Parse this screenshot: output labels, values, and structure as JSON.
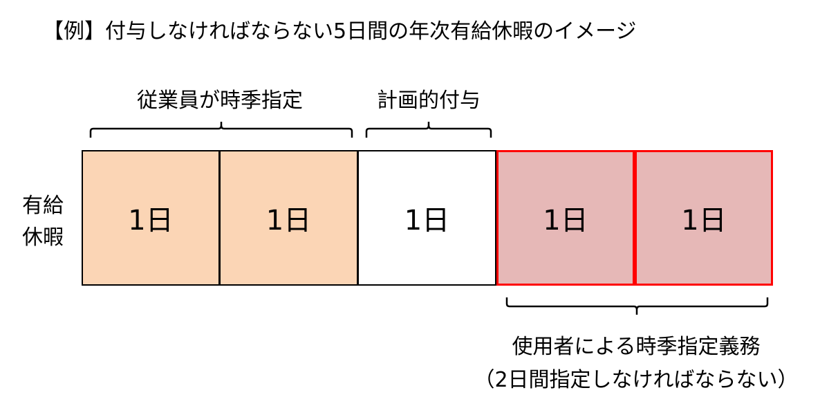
{
  "title": "【例】付与しなければならない5日間の年次有給休暇のイメージ",
  "groups": {
    "employee": "従業員が時季指定",
    "planned": "計画的付与",
    "employer_line1": "使用者による時季指定義務",
    "employer_line2": "（2日間指定しなければならない）"
  },
  "row_label": {
    "line1": "有給",
    "line2": "休暇"
  },
  "days": [
    {
      "label": "1日",
      "fill": "#fbd5b5",
      "border": "#000000"
    },
    {
      "label": "1日",
      "fill": "#fbd5b5",
      "border": "#000000"
    },
    {
      "label": "1日",
      "fill": "#ffffff",
      "border": "#000000"
    },
    {
      "label": "1日",
      "fill": "#e6b8b7",
      "border": "#ff0000"
    },
    {
      "label": "1日",
      "fill": "#e6b8b7",
      "border": "#ff0000"
    }
  ]
}
